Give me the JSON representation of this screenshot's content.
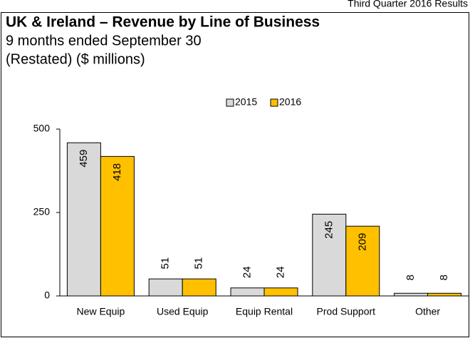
{
  "header": "Third Quarter 2016 Results",
  "chart_data": {
    "type": "bar",
    "title": "UK & Ireland – Revenue by Line of Business",
    "subtitle": [
      "9 months ended September 30",
      "(Restated)  ($ millions)"
    ],
    "categories": [
      "New Equip",
      "Used Equip",
      "Equip Rental",
      "Prod Support",
      "Other"
    ],
    "series": [
      {
        "name": "2015",
        "color": "#d9d9d9",
        "values": [
          459,
          51,
          24,
          245,
          8
        ]
      },
      {
        "name": "2016",
        "color": "#ffc000",
        "values": [
          418,
          51,
          24,
          209,
          8
        ]
      }
    ],
    "ylim": [
      0,
      500
    ],
    "yticks": [
      0,
      250,
      500
    ],
    "grid": false,
    "legend": "top"
  }
}
